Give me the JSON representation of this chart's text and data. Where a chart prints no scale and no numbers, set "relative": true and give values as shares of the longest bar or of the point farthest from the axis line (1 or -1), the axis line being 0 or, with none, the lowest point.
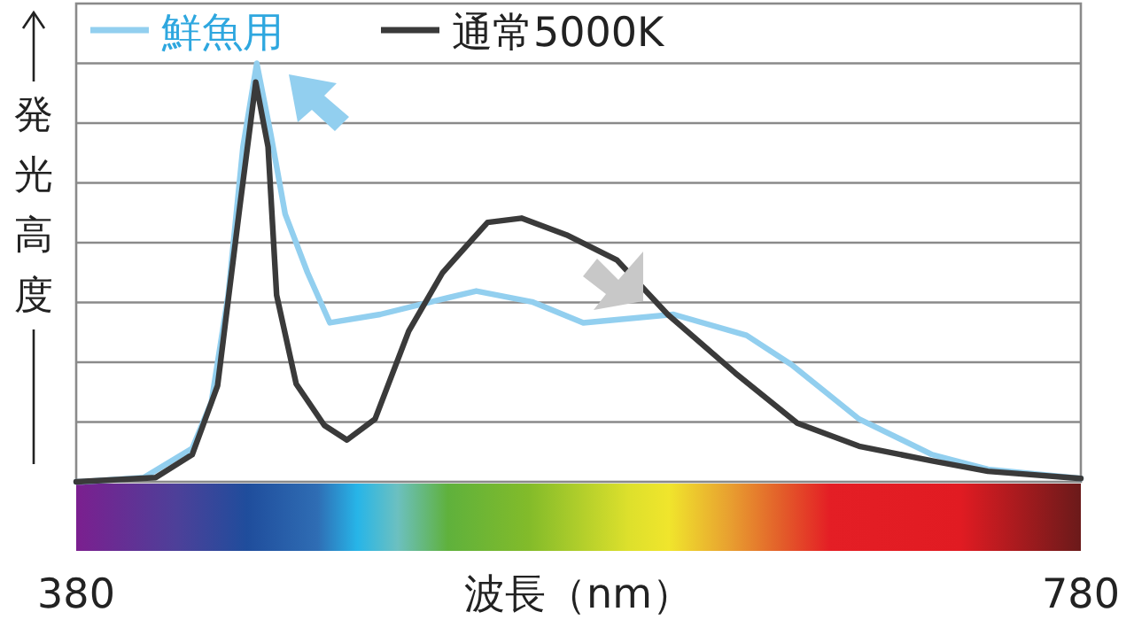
{
  "chart_data": {
    "type": "line",
    "relative": true,
    "xlabel": "波長（nm）",
    "ylabel": "発光高度",
    "xlim": [
      380,
      780
    ],
    "xticks": [
      380,
      780
    ],
    "grid": "y",
    "legend": "top left",
    "marker": "none",
    "line_style": "solid",
    "series": [
      {
        "name": "鮮魚用",
        "color": "#92cfef",
        "x": [
          380,
          382.5,
          406.9,
          426.2,
          433.8,
          440.5,
          446.4,
          451.9,
          457.5,
          463.2,
          472.1,
          481.0,
          501.0,
          521.2,
          539.3,
          561.5,
          581.9,
          617.8,
          646.9,
          664.8,
          691.7,
          720.8,
          743.0,
          780
        ],
        "values": [
          0,
          0,
          0.01,
          0.08,
          0.19,
          0.445,
          0.8,
          1.0,
          0.83,
          0.64,
          0.5,
          0.38,
          0.4,
          0.43,
          0.456,
          0.43,
          0.38,
          0.4,
          0.35,
          0.28,
          0.15,
          0.065,
          0.03,
          0.008
        ]
      },
      {
        "name": "通常5000K",
        "color": "#3a3a3a",
        "x": [
          380,
          411.6,
          426.2,
          436.3,
          445.2,
          451.5,
          456.4,
          459.8,
          467.6,
          478.8,
          487.8,
          499.0,
          512.4,
          525.9,
          543.8,
          557.3,
          575.2,
          595.3,
          615.5,
          642.4,
          667.1,
          691.7,
          720.8,
          743.0,
          780
        ],
        "values": [
          0,
          0.01,
          0.065,
          0.23,
          0.66,
          0.955,
          0.8,
          0.446,
          0.234,
          0.135,
          0.1,
          0.15,
          0.36,
          0.5,
          0.62,
          0.63,
          0.59,
          0.53,
          0.4,
          0.26,
          0.14,
          0.085,
          0.05,
          0.025,
          0.008
        ]
      }
    ]
  }
}
